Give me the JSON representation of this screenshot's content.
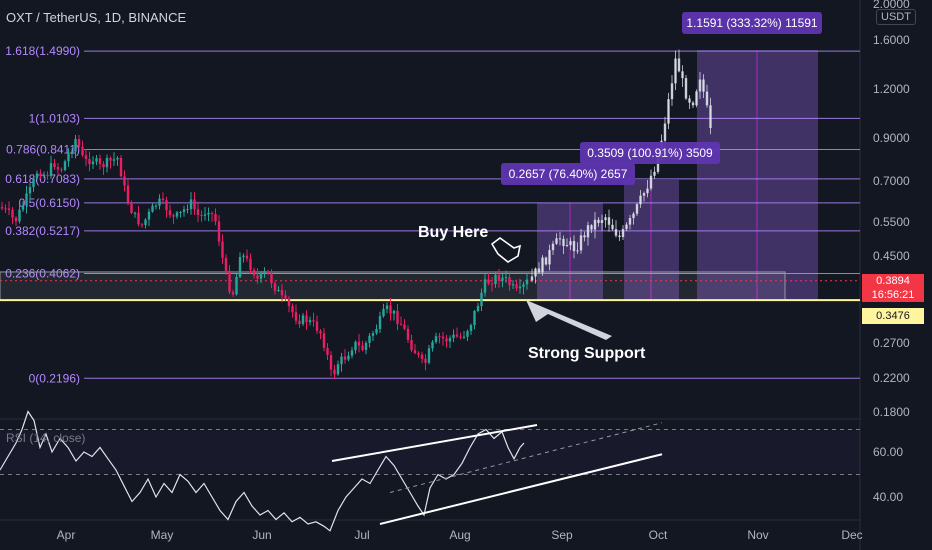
{
  "header": {
    "symbol": "OXT / TetherUS, 1D, BINANCE",
    "currency": "USDT"
  },
  "colors": {
    "up": "#26a69a",
    "down": "#e91e63",
    "fib": "#b388ff",
    "support": "#fff59d",
    "projection": "#7e57c2",
    "text": "#d1d4dc",
    "grid": "#2a2e39"
  },
  "price_tag": {
    "price": "0.3894",
    "countdown": "16:56:21"
  },
  "support_tag": "0.3476",
  "annotations": {
    "buy_here": "Buy Here",
    "strong_support": "Strong Support",
    "target1": "0.2657 (76.40%) 2657",
    "target2": "0.3509 (100.91%) 3509",
    "target3": "1.1591 (333.32%) 11591"
  },
  "rsi_label": "RSI (14, close)",
  "chart_data": {
    "type": "candlestick",
    "price_axis": {
      "scale": "log",
      "ticks": [
        2.0,
        1.6,
        1.2,
        0.9,
        0.7,
        0.55,
        0.45,
        0.39,
        0.35,
        0.27,
        0.22,
        0.18
      ],
      "labels": [
        "2.0000",
        "1.6000",
        "1.2000",
        "0.9000",
        "0.7000",
        "0.5500",
        "0.4500",
        "0.3894",
        "0.3476",
        "0.2700",
        "0.2200",
        "0.1800"
      ]
    },
    "time_axis": [
      "Apr",
      "May",
      "Jun",
      "Jul",
      "Aug",
      "Sep",
      "Oct",
      "Nov",
      "Dec"
    ],
    "fib_levels": [
      {
        "label": "1.618(1.4990)",
        "price": 1.499
      },
      {
        "label": "1(1.0103)",
        "price": 1.0103
      },
      {
        "label": "0.786(0.8411)",
        "price": 0.8411
      },
      {
        "label": "0.618(0.7083)",
        "price": 0.7083
      },
      {
        "label": "0.5(0.6150)",
        "price": 0.615
      },
      {
        "label": "0.382(0.5217)",
        "price": 0.5217
      },
      {
        "label": "0.236(0.4062)",
        "price": 0.4062
      },
      {
        "label": "0(0.2196)",
        "price": 0.2196
      }
    ],
    "support_price": 0.3476,
    "current_price": 0.3894,
    "rsi_axis": {
      "ticks": [
        60,
        40
      ],
      "labels": [
        "60.00",
        "40.00"
      ],
      "range": [
        25,
        80
      ]
    },
    "rsi_levels": [
      70,
      50
    ]
  }
}
